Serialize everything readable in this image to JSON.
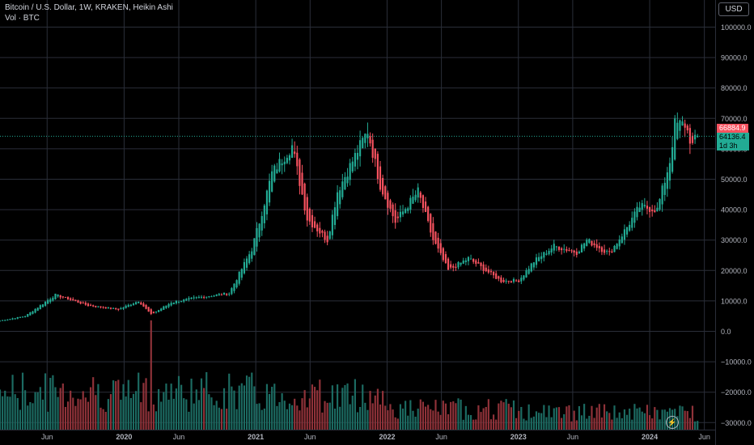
{
  "header": {
    "title": "Bitcoin / U.S. Dollar, 1W, KRAKEN, Heikin Ashi",
    "volume_label": "Vol · BTC"
  },
  "currency_button": "USD",
  "price_tags": {
    "previous_close": "66884.9",
    "last_price": "64136.4",
    "countdown": "1d 3h"
  },
  "colors": {
    "up": "#22ab94",
    "down": "#f7525f",
    "volume_up": "#1c6b62",
    "volume_down": "#8f3239",
    "grid": "#2a2e39",
    "axis_text": "#b2b5be",
    "background": "#000000"
  },
  "chart_data": {
    "type": "candlestick",
    "y_axis": {
      "ticks": [
        100000,
        90000,
        80000,
        70000,
        60000,
        50000,
        40000,
        30000,
        20000,
        10000,
        0,
        -10000,
        -20000,
        -30000
      ],
      "tick_labels": [
        "100000.0",
        "90000.0",
        "80000.0",
        "70000.0",
        "60000.0",
        "50000.0",
        "40000.0",
        "30000.0",
        "20000.0",
        "10000.0",
        "0.0",
        "−10000.0",
        "−20000.0",
        "−30000.0"
      ],
      "range": [
        -31000,
        105000
      ]
    },
    "x_axis": {
      "range": [
        "2019-01-21",
        "2024-07-01"
      ],
      "ticks": [
        {
          "label": "Jun",
          "date": "2019-06-01"
        },
        {
          "label": "2020",
          "date": "2020-01-01"
        },
        {
          "label": "Jun",
          "date": "2020-06-01"
        },
        {
          "label": "2021",
          "date": "2021-01-01"
        },
        {
          "label": "Jun",
          "date": "2021-06-01"
        },
        {
          "label": "2022",
          "date": "2022-01-01"
        },
        {
          "label": "Jun",
          "date": "2022-06-01"
        },
        {
          "label": "2023",
          "date": "2023-01-01"
        },
        {
          "label": "Jun",
          "date": "2023-06-01"
        },
        {
          "label": "2024",
          "date": "2024-01-01"
        },
        {
          "label": "Jun",
          "date": "2024-06-01"
        }
      ]
    },
    "price_keypoints": [
      [
        "2019-01-21",
        3500
      ],
      [
        "2019-04-01",
        5000
      ],
      [
        "2019-06-24",
        12000
      ],
      [
        "2019-09-23",
        8500
      ],
      [
        "2019-12-16",
        7200
      ],
      [
        "2020-02-10",
        10000
      ],
      [
        "2020-03-16",
        5500
      ],
      [
        "2020-05-11",
        9500
      ],
      [
        "2020-07-27",
        11200
      ],
      [
        "2020-10-19",
        12500
      ],
      [
        "2020-12-21",
        27000
      ],
      [
        "2021-01-11",
        36000
      ],
      [
        "2021-02-15",
        52000
      ],
      [
        "2021-04-12",
        61000
      ],
      [
        "2021-05-24",
        37000
      ],
      [
        "2021-07-19",
        30000
      ],
      [
        "2021-08-16",
        46000
      ],
      [
        "2021-10-18",
        61000
      ],
      [
        "2021-11-08",
        66000
      ],
      [
        "2021-12-13",
        48000
      ],
      [
        "2022-01-24",
        36000
      ],
      [
        "2022-03-28",
        46000
      ],
      [
        "2022-05-09",
        30000
      ],
      [
        "2022-06-20",
        20000
      ],
      [
        "2022-08-15",
        24000
      ],
      [
        "2022-11-14",
        16500
      ],
      [
        "2023-01-02",
        16700
      ],
      [
        "2023-02-13",
        23000
      ],
      [
        "2023-04-10",
        28000
      ],
      [
        "2023-06-12",
        26000
      ],
      [
        "2023-07-10",
        30000
      ],
      [
        "2023-09-11",
        25500
      ],
      [
        "2023-10-23",
        33000
      ],
      [
        "2023-12-04",
        41000
      ],
      [
        "2024-01-22",
        40000
      ],
      [
        "2024-02-26",
        56000
      ],
      [
        "2024-03-11",
        68000
      ],
      [
        "2024-04-08",
        68000
      ],
      [
        "2024-04-29",
        61000
      ],
      [
        "2024-05-13",
        64136
      ]
    ],
    "volume_scale_note": "volume bars drawn along bottom pane, volume tick labels not shown"
  }
}
